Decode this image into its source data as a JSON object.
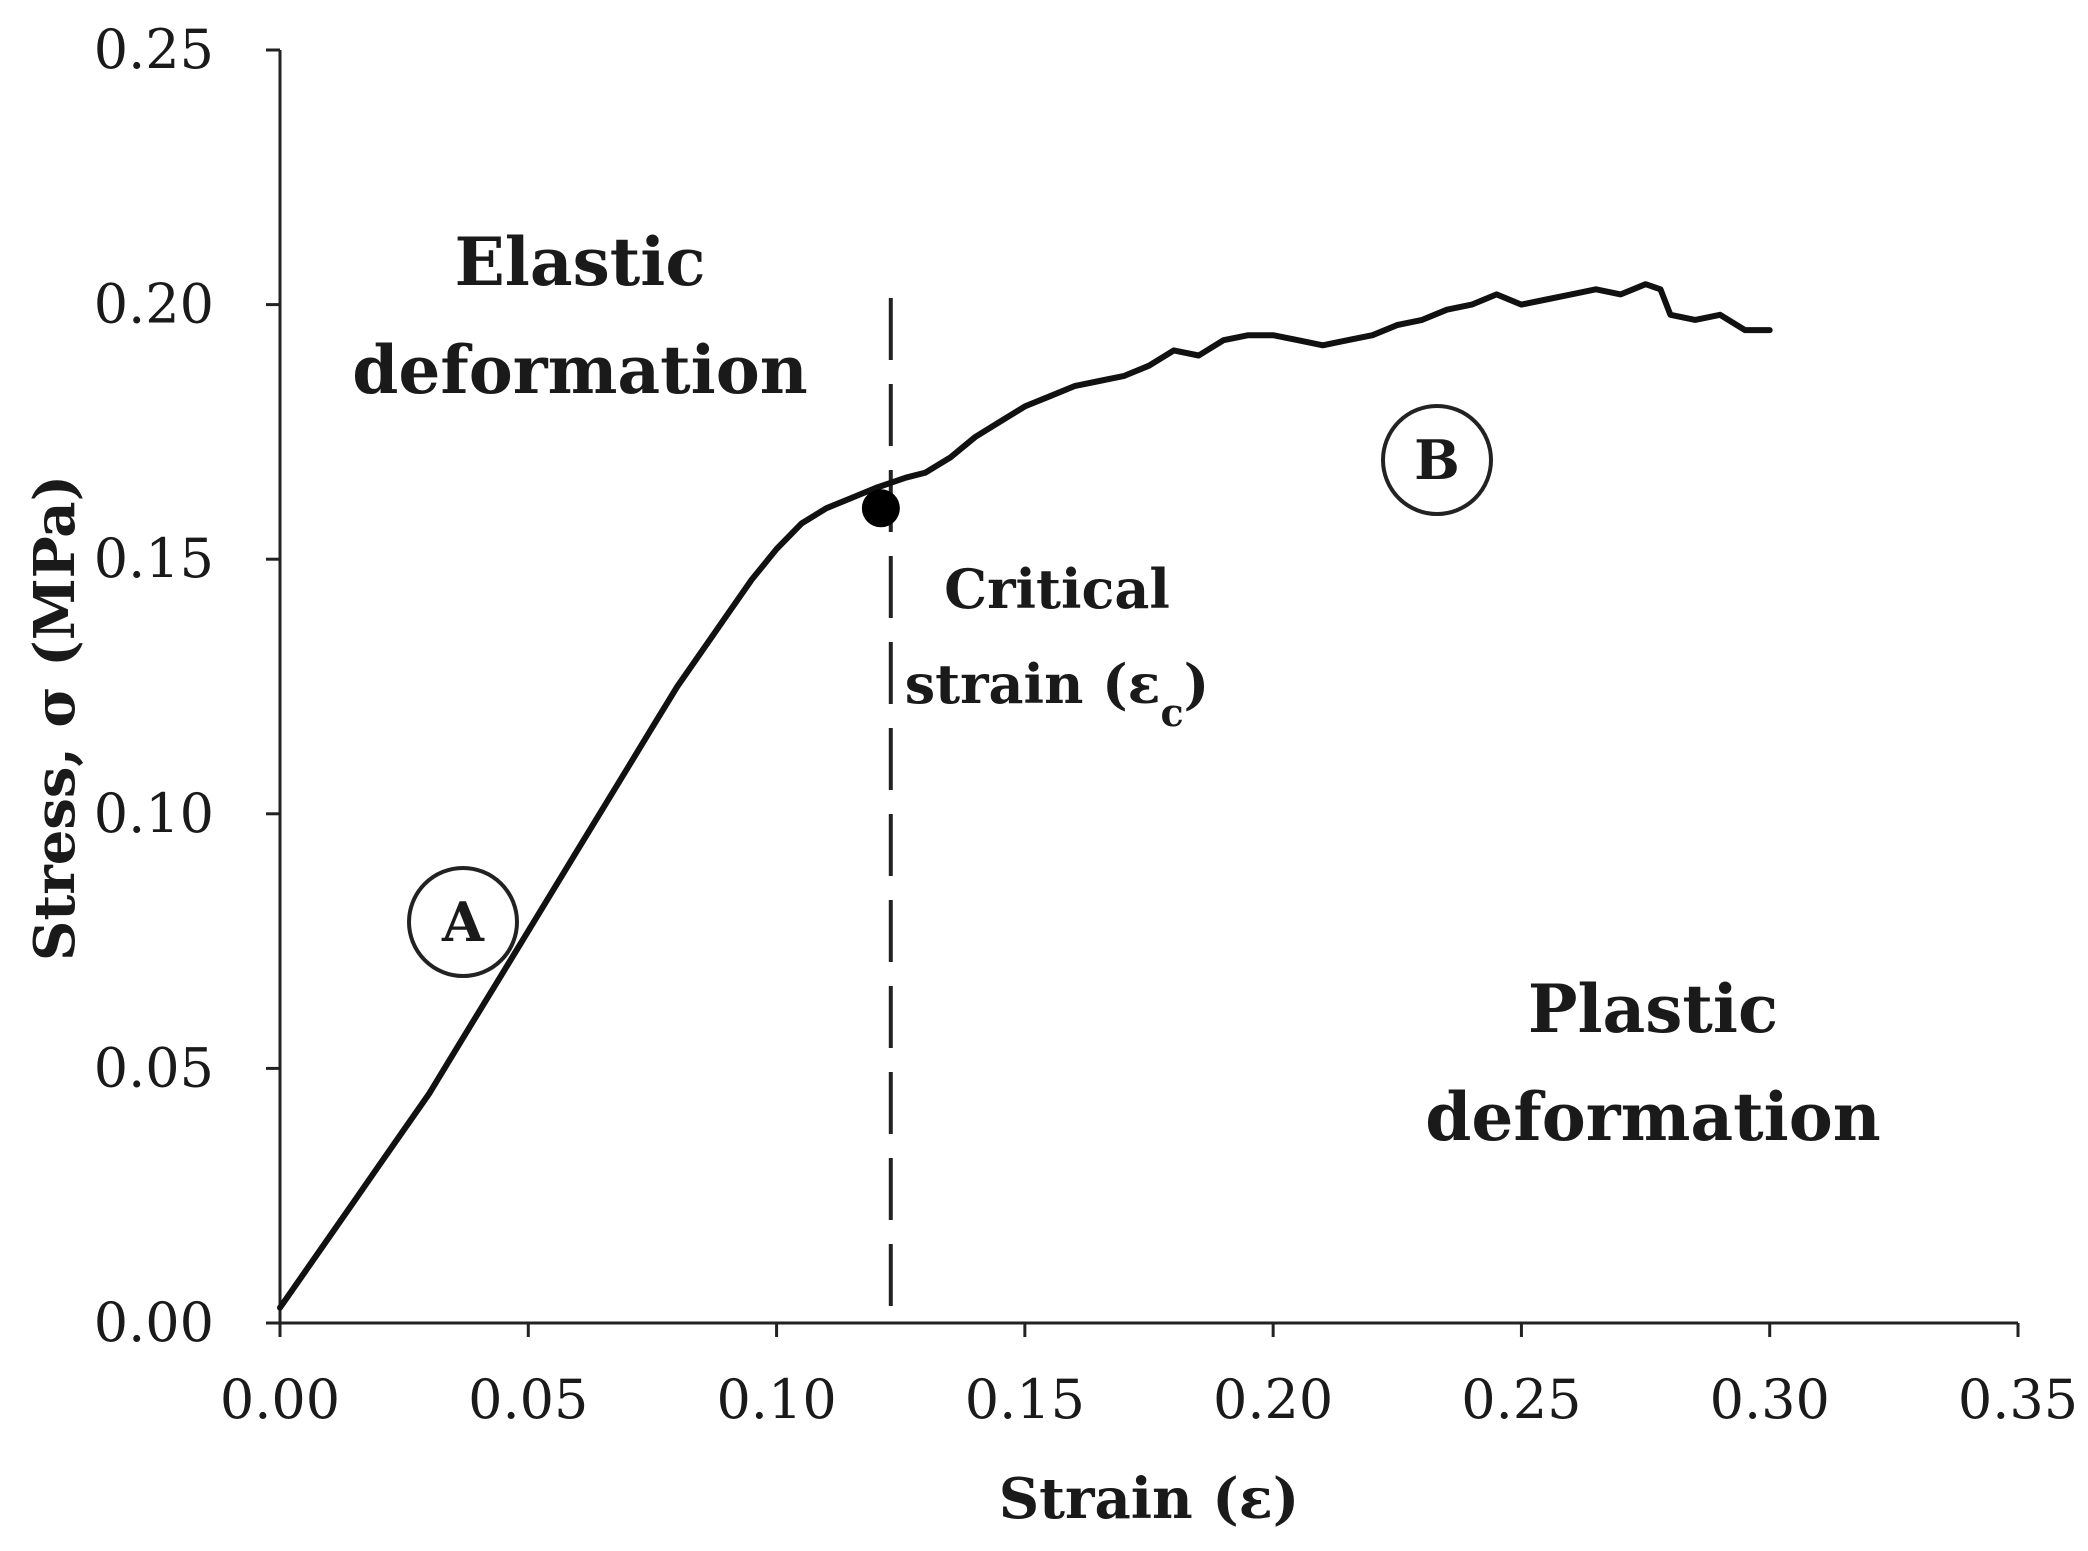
{
  "chart_data": {
    "type": "line",
    "title": "",
    "xlabel": "Strain (ε)",
    "ylabel": "Stress, σ (MPa)",
    "xlim": [
      0,
      0.35
    ],
    "ylim": [
      0,
      0.25
    ],
    "x_ticks": [
      "0.00",
      "0.05",
      "0.10",
      "0.15",
      "0.20",
      "0.25",
      "0.30",
      "0.35"
    ],
    "y_ticks": [
      "0.00",
      "0.05",
      "0.10",
      "0.15",
      "0.20",
      "0.25"
    ],
    "grid": false,
    "legend": "none",
    "line_color": "#111111",
    "series": [
      {
        "x": [
          0.0,
          0.005,
          0.01,
          0.015,
          0.02,
          0.025,
          0.03,
          0.035,
          0.04,
          0.045,
          0.05,
          0.055,
          0.06,
          0.065,
          0.07,
          0.075,
          0.08,
          0.085,
          0.09,
          0.095,
          0.1,
          0.105,
          0.11,
          0.115,
          0.12,
          0.123,
          0.126,
          0.13,
          0.135,
          0.14,
          0.145,
          0.15,
          0.155,
          0.16,
          0.165,
          0.17,
          0.175,
          0.18,
          0.185,
          0.19,
          0.195,
          0.2,
          0.205,
          0.21,
          0.215,
          0.22,
          0.225,
          0.23,
          0.235,
          0.24,
          0.245,
          0.25,
          0.255,
          0.26,
          0.265,
          0.27,
          0.275,
          0.278,
          0.28,
          0.285,
          0.29,
          0.295,
          0.3
        ],
        "y": [
          0.003,
          0.01,
          0.017,
          0.024,
          0.031,
          0.038,
          0.045,
          0.053,
          0.061,
          0.069,
          0.077,
          0.085,
          0.093,
          0.101,
          0.109,
          0.117,
          0.125,
          0.132,
          0.139,
          0.146,
          0.152,
          0.157,
          0.16,
          0.162,
          0.164,
          0.165,
          0.166,
          0.167,
          0.17,
          0.174,
          0.177,
          0.18,
          0.182,
          0.184,
          0.185,
          0.186,
          0.188,
          0.191,
          0.19,
          0.193,
          0.194,
          0.194,
          0.193,
          0.192,
          0.193,
          0.194,
          0.196,
          0.197,
          0.199,
          0.2,
          0.202,
          0.2,
          0.201,
          0.202,
          0.203,
          0.202,
          0.204,
          0.203,
          0.198,
          0.197,
          0.198,
          0.195,
          0.195
        ]
      }
    ],
    "critical_point": {
      "x": 0.121,
      "y": 0.16
    },
    "critical_strain_line": {
      "x": 0.123
    },
    "annotations": {
      "elastic_line1": "Elastic",
      "elastic_line2": "deformation",
      "plastic_line1": "Plastic",
      "plastic_line2": "deformation",
      "critical_line1": "Critical",
      "critical_line2_prefix": "strain (ε",
      "critical_line2_sub": "c",
      "critical_line2_suffix": ")",
      "marker_a": "A",
      "marker_b": "B"
    }
  }
}
